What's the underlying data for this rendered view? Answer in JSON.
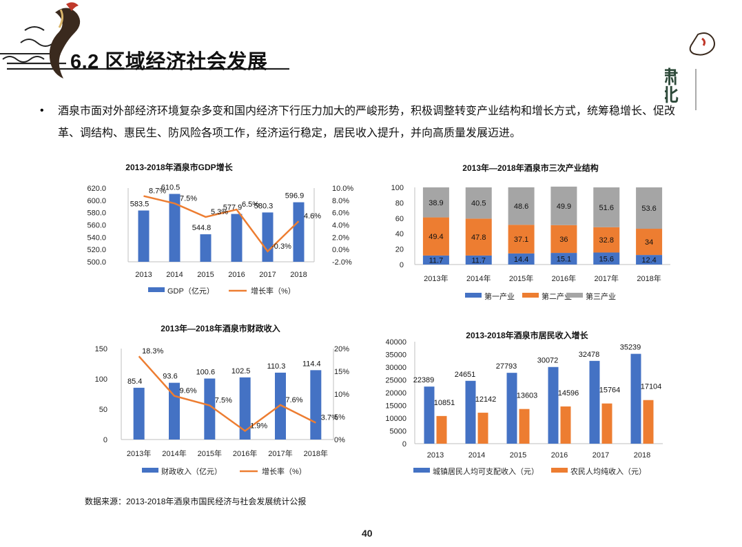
{
  "header": {
    "title": "6.2 区域经济社会发展",
    "logo_text": "肃北"
  },
  "body": {
    "bullet_text": "酒泉市面对外部经济环境复杂多变和国内经济下行压力加大的严峻形势，积极调整转变产业结构和增长方式，统筹稳增长、促改革、调结构、惠民生、防风险各项工作，经济运行稳定，居民收入提升，并向高质量发展迈进。"
  },
  "colors": {
    "blue": "#4472c4",
    "orange": "#ed7d31",
    "gray": "#a5a5a5"
  },
  "chart_data": [
    {
      "type": "bar",
      "title": "2013-2018年酒泉市GDP增长",
      "categories": [
        "2013",
        "2014",
        "2015",
        "2016",
        "2017",
        "2018"
      ],
      "series": [
        {
          "name": "GDP（亿元）",
          "type": "bar",
          "axis": "left",
          "values": [
            583.5,
            610.5,
            544.8,
            577.9,
            580.3,
            596.9
          ],
          "labels": [
            "583.5",
            "610.5",
            "544.8",
            "577.9",
            "580.3",
            "596.9"
          ]
        },
        {
          "name": "增长率（%）",
          "type": "line",
          "axis": "right",
          "values": [
            8.7,
            7.5,
            5.3,
            6.5,
            -0.3,
            4.6
          ],
          "labels": [
            "8.7%",
            "7.5%",
            "5.3%",
            "6.5%",
            "-0.3%",
            "4.6%"
          ]
        }
      ],
      "y_left": {
        "min": 500,
        "max": 620,
        "ticks": [
          "620.0",
          "600.0",
          "580.0",
          "560.0",
          "540.0",
          "520.0",
          "500.0"
        ]
      },
      "y_right": {
        "min": -2,
        "max": 10,
        "ticks": [
          "10.0%",
          "8.0%",
          "6.0%",
          "4.0%",
          "2.0%",
          "0.0%",
          "-2.0%"
        ]
      },
      "legend_position": "bottom"
    },
    {
      "type": "bar",
      "stacked": true,
      "title": "2013年—2018年酒泉市三次产业结构",
      "categories": [
        "2013年",
        "2014年",
        "2015年",
        "2016年",
        "2017年",
        "2018年"
      ],
      "series": [
        {
          "name": "第一产业",
          "values": [
            11.7,
            11.7,
            14.4,
            15.1,
            15.6,
            12.4
          ],
          "labels": [
            "11.7",
            "11.7",
            "14.4",
            "15.1",
            "15.6",
            "12.4"
          ]
        },
        {
          "name": "第二产业",
          "values": [
            49.4,
            47.8,
            37.1,
            36,
            32.8,
            34
          ],
          "labels": [
            "49.4",
            "47.8",
            "37.1",
            "36",
            "32.8",
            "34"
          ]
        },
        {
          "name": "第三产业",
          "values": [
            38.9,
            40.5,
            48.6,
            49.9,
            51.6,
            53.6
          ],
          "labels": [
            "38.9",
            "40.5",
            "48.6",
            "49.9",
            "51.6",
            "53.6"
          ]
        }
      ],
      "y_left": {
        "min": 0,
        "max": 100,
        "ticks": [
          "100",
          "80",
          "60",
          "40",
          "20",
          "0"
        ]
      },
      "legend_position": "bottom"
    },
    {
      "type": "bar",
      "title": "2013年—2018年酒泉市财政收入",
      "categories": [
        "2013年",
        "2014年",
        "2015年",
        "2016年",
        "2017年",
        "2018年"
      ],
      "series": [
        {
          "name": "财政收入（亿元）",
          "type": "bar",
          "axis": "left",
          "values": [
            85.4,
            93.6,
            100.6,
            102.5,
            110.3,
            114.4
          ],
          "labels": [
            "85.4",
            "93.6",
            "100.6",
            "102.5",
            "110.3",
            "114.4"
          ]
        },
        {
          "name": "增长率（%）",
          "type": "line",
          "axis": "right",
          "values": [
            18.3,
            9.6,
            7.5,
            1.9,
            7.6,
            3.7
          ],
          "labels": [
            "18.3%",
            "9.6%",
            "7.5%",
            "1.9%",
            "7.6%",
            "3.7%"
          ]
        }
      ],
      "y_left": {
        "min": 0,
        "max": 150,
        "ticks": [
          "150",
          "100",
          "50",
          "0"
        ]
      },
      "y_right": {
        "min": 0,
        "max": 20,
        "ticks": [
          "20%",
          "15%",
          "10%",
          "5%",
          "0%"
        ]
      },
      "legend_position": "bottom"
    },
    {
      "type": "bar",
      "title": "2013-2018年酒泉市居民收入增长",
      "categories": [
        "2013",
        "2014",
        "2015",
        "2016",
        "2017",
        "2018"
      ],
      "series": [
        {
          "name": "城镇居民人均可支配收入（元）",
          "values": [
            22389,
            24651,
            27793,
            30072,
            32478,
            35239
          ],
          "labels": [
            "22389",
            "24651",
            "27793",
            "30072",
            "32478",
            "35239"
          ]
        },
        {
          "name": "农民人均纯收入（元）",
          "values": [
            10851,
            12142,
            13603,
            14596,
            15764,
            17104
          ],
          "labels": [
            "10851",
            "12142",
            "13603",
            "14596",
            "15764",
            "17104"
          ]
        }
      ],
      "y_left": {
        "min": 0,
        "max": 40000,
        "ticks": [
          "40000",
          "35000",
          "30000",
          "25000",
          "20000",
          "15000",
          "10000",
          "5000",
          "0"
        ]
      },
      "legend_position": "bottom"
    }
  ],
  "footer": {
    "source": "数据来源：2013-2018年酒泉市国民经济与社会发展统计公报",
    "page_number": "40"
  }
}
